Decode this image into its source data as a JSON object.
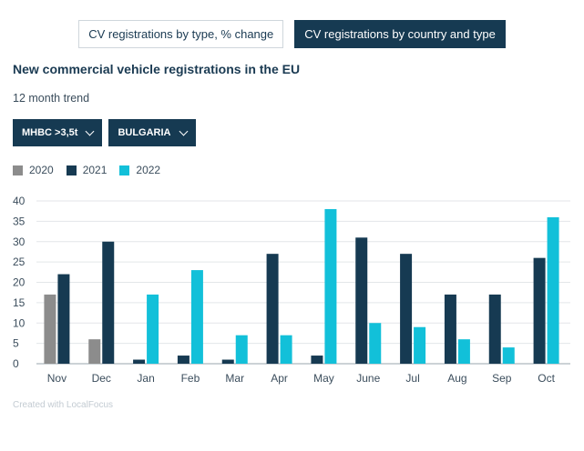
{
  "tabs": [
    {
      "label": "CV registrations by type, % change",
      "active": false
    },
    {
      "label": "CV registrations by country and type",
      "active": true
    }
  ],
  "title": "New commercial vehicle registrations in the EU",
  "subtitle": "12 month trend",
  "filters": [
    {
      "label": "MHBC >3,5t"
    },
    {
      "label": "BULGARIA"
    }
  ],
  "icons": {
    "dropdown": "chevron-down-icon"
  },
  "credit": "Created with LocalFocus",
  "chart_data": {
    "type": "bar",
    "title": "New commercial vehicle registrations in the EU",
    "xlabel": "",
    "ylabel": "",
    "ylim": [
      0,
      40
    ],
    "yticks": [
      0,
      5,
      10,
      15,
      20,
      25,
      30,
      35,
      40
    ],
    "grid": true,
    "legend_position": "top-left",
    "categories": [
      "Nov",
      "Dec",
      "Jan",
      "Feb",
      "Mar",
      "Apr",
      "May",
      "June",
      "Jul",
      "Aug",
      "Sep",
      "Oct"
    ],
    "series": [
      {
        "name": "2020",
        "color": "#8c8c8c",
        "values": [
          17,
          6,
          null,
          null,
          null,
          null,
          null,
          null,
          null,
          null,
          null,
          null
        ]
      },
      {
        "name": "2021",
        "color": "#163a52",
        "values": [
          22,
          30,
          1,
          2,
          1,
          27,
          2,
          31,
          27,
          17,
          17,
          26
        ]
      },
      {
        "name": "2022",
        "color": "#12c0d9",
        "values": [
          null,
          null,
          17,
          23,
          7,
          7,
          38,
          10,
          9,
          6,
          4,
          36
        ]
      }
    ]
  }
}
